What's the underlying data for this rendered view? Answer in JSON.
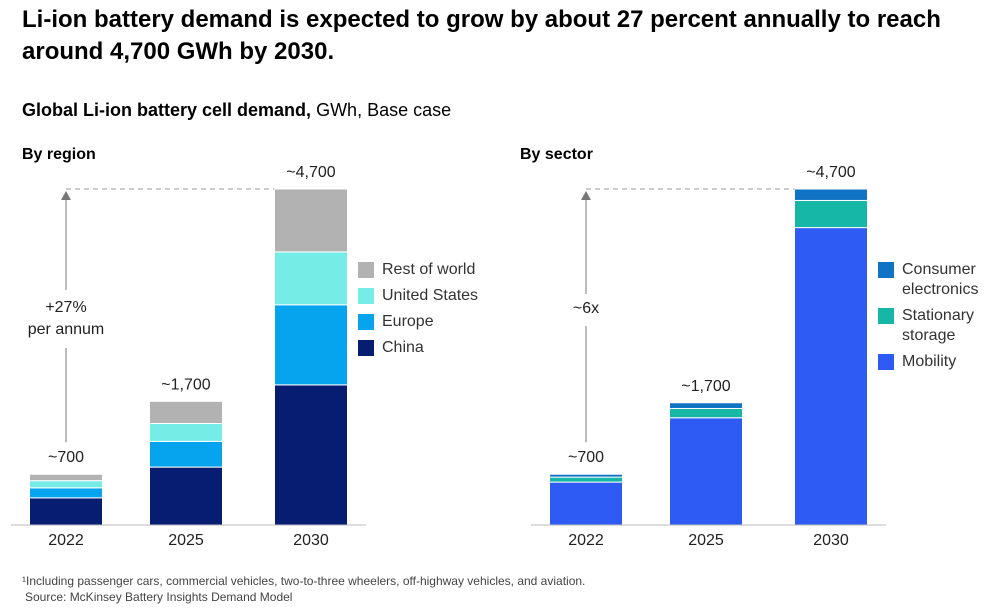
{
  "title": "Li-ion battery demand is expected to grow by about 27 percent annually to reach around 4,700  GWh by 2030.",
  "subtitle_bold": "Global Li-ion battery cell demand,",
  "subtitle": "GWh, Base case",
  "footnote": "¹Including passenger cars, commercial vehicles, two-to-three wheelers, off-highway vehicles, and aviation.",
  "source": "Source: McKinsey Battery Insights Demand Model",
  "chart_data": [
    {
      "type": "bar",
      "stacked": true,
      "title": "By region",
      "categories": [
        "2022",
        "2025",
        "2030"
      ],
      "total_labels": [
        "~700",
        "~1,700",
        "~4,700"
      ],
      "annotation": "+27%\nper annum",
      "series": [
        {
          "name": "China",
          "color": "#061d72",
          "values": [
            380,
            810,
            1960
          ]
        },
        {
          "name": "Europe",
          "color": "#06a4ef",
          "values": [
            140,
            360,
            1120
          ]
        },
        {
          "name": "United States",
          "color": "#75ede6",
          "values": [
            100,
            250,
            740
          ]
        },
        {
          "name": "Rest of world",
          "color": "#b2b2b2",
          "values": [
            90,
            310,
            880
          ]
        }
      ]
    },
    {
      "type": "bar",
      "stacked": true,
      "title": "By sector",
      "categories": [
        "2022",
        "2025",
        "2030"
      ],
      "total_labels": [
        "~700",
        "~1,700",
        "~4,700"
      ],
      "annotation": "~6x",
      "series": [
        {
          "name": "Mobility",
          "color": "#2e5bf4",
          "values": [
            600,
            1500,
            4160
          ]
        },
        {
          "name": "Stationary storage",
          "color": "#17b7a8",
          "values": [
            70,
            130,
            380
          ]
        },
        {
          "name": "Consumer electronics",
          "color": "#1173c4",
          "values": [
            40,
            80,
            160
          ]
        }
      ]
    }
  ]
}
